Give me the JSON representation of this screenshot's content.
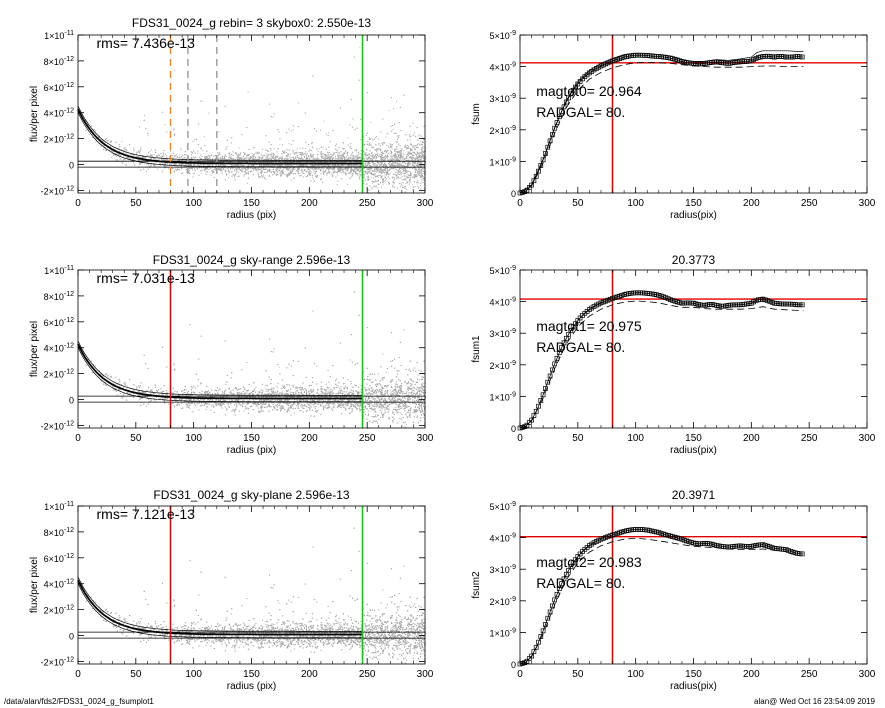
{
  "colors": {
    "scatter": "#a8a8a8",
    "profile": "#000000",
    "orange_marker": "#ff8000",
    "gray_marker": "#999999",
    "red_marker": "#e00000",
    "green_marker": "#00d000",
    "red_hline": "#e00000"
  },
  "footer": {
    "left": "/data/alan/fds2/FDS31_0024_g_fsumplot1",
    "right": "alan@  Wed Oct 16 23:54:09 2019"
  },
  "chart_data": [
    {
      "type": "scatter",
      "title": "FDS31_0024_g rebin= 3    skybox0:  2.550e-13",
      "annotation": "rms= 7.436e-13",
      "xlabel": "radius (pix)",
      "ylabel": "flux/per pixel",
      "xlim": [
        0,
        300
      ],
      "ylim": [
        -2.2e-12,
        1e-11
      ],
      "xticks": [
        "0",
        "50",
        "100",
        "150",
        "200",
        "250",
        "300"
      ],
      "yticks": [
        {
          "value": -2e-12,
          "mant": "-2×10",
          "exp": "-12"
        },
        {
          "value": 0,
          "mant": "0",
          "exp": ""
        },
        {
          "value": 2e-12,
          "mant": "2×10",
          "exp": "-12"
        },
        {
          "value": 4e-12,
          "mant": "4×10",
          "exp": "-12"
        },
        {
          "value": 6e-12,
          "mant": "6×10",
          "exp": "-12"
        },
        {
          "value": 8e-12,
          "mant": "8×10",
          "exp": "-12"
        },
        {
          "value": 1e-11,
          "mant": "1×10",
          "exp": "-11"
        }
      ],
      "sky_levels": [
        2.55e-13,
        -2e-13
      ],
      "vlines": [
        {
          "x": 80,
          "color": "orange_marker",
          "style": "dashed"
        },
        {
          "x": 95,
          "color": "gray_marker",
          "style": "dashed"
        },
        {
          "x": 120,
          "color": "gray_marker",
          "style": "dashed"
        },
        {
          "x": 246,
          "color": "green_marker",
          "style": "solid"
        }
      ]
    },
    {
      "type": "line",
      "title": "",
      "xlabel": "radius(pix)",
      "ylabel": "fsum",
      "xlim": [
        0,
        300
      ],
      "ylim": [
        0,
        5e-09
      ],
      "xticks": [
        "0",
        "50",
        "100",
        "150",
        "200",
        "250",
        "300"
      ],
      "yticks": [
        {
          "value": 0,
          "mant": "0",
          "exp": ""
        },
        {
          "value": 1e-09,
          "mant": "1×10",
          "exp": "-9"
        },
        {
          "value": 2e-09,
          "mant": "2×10",
          "exp": "-9"
        },
        {
          "value": 3e-09,
          "mant": "3×10",
          "exp": "-9"
        },
        {
          "value": 4e-09,
          "mant": "4×10",
          "exp": "-9"
        },
        {
          "value": 5e-09,
          "mant": "5×10",
          "exp": "-9"
        }
      ],
      "hline": 4.12e-09,
      "vline": 80,
      "text_lines": [
        "magtot0=  20.964",
        "RADGAL=     80."
      ],
      "series": [
        {
          "role": "main",
          "x": [
            0,
            5,
            10,
            15,
            20,
            25,
            30,
            35,
            40,
            45,
            50,
            55,
            60,
            65,
            70,
            75,
            80,
            85,
            90,
            95,
            100,
            105,
            110,
            115,
            120,
            125,
            130,
            135,
            140,
            145,
            150,
            155,
            160,
            165,
            170,
            175,
            180,
            185,
            190,
            195,
            200,
            205,
            210,
            215,
            220,
            225,
            230,
            235,
            240,
            245
          ],
          "y": [
            0,
            5e-11,
            2.5e-10,
            6e-10,
            1.05e-09,
            1.55e-09,
            2.05e-09,
            2.5e-09,
            2.88e-09,
            3.2e-09,
            3.45e-09,
            3.65e-09,
            3.8e-09,
            3.92e-09,
            4.02e-09,
            4.1e-09,
            4.18e-09,
            4.24e-09,
            4.3e-09,
            4.34e-09,
            4.36e-09,
            4.36e-09,
            4.35e-09,
            4.33e-09,
            4.32e-09,
            4.3e-09,
            4.27e-09,
            4.22e-09,
            4.16e-09,
            4.12e-09,
            4.1e-09,
            4.08e-09,
            4.1e-09,
            4.13e-09,
            4.15e-09,
            4.12e-09,
            4.1e-09,
            4.13e-09,
            4.15e-09,
            4.16e-09,
            4.18e-09,
            4.28e-09,
            4.32e-09,
            4.33e-09,
            4.3e-09,
            4.33e-09,
            4.3e-09,
            4.3e-09,
            4.32e-09,
            4.3e-09
          ]
        },
        {
          "role": "upper",
          "x": [
            0,
            10,
            20,
            30,
            40,
            50,
            60,
            70,
            80,
            90,
            100,
            110,
            120,
            130,
            140,
            150,
            160,
            170,
            180,
            190,
            200,
            205,
            210,
            220,
            230,
            240,
            245
          ],
          "y": [
            0,
            2.6e-10,
            1.07e-09,
            2.08e-09,
            2.93e-09,
            3.52e-09,
            3.88e-09,
            4.1e-09,
            4.26e-09,
            4.38e-09,
            4.42e-09,
            4.42e-09,
            4.38e-09,
            4.33e-09,
            4.22e-09,
            4.16e-09,
            4.17e-09,
            4.22e-09,
            4.2e-09,
            4.24e-09,
            4.3e-09,
            4.45e-09,
            4.5e-09,
            4.5e-09,
            4.5e-09,
            4.48e-09,
            4.48e-09
          ]
        },
        {
          "role": "lower",
          "x": [
            0,
            10,
            20,
            30,
            40,
            50,
            60,
            70,
            80,
            90,
            100,
            110,
            120,
            130,
            140,
            150,
            160,
            170,
            180,
            190,
            200,
            210,
            220,
            230,
            240,
            245
          ],
          "y": [
            0,
            2.2e-10,
            9.5e-10,
            1.9e-09,
            2.7e-09,
            3.25e-09,
            3.6e-09,
            3.82e-09,
            3.96e-09,
            4.06e-09,
            4.12e-09,
            4.13e-09,
            4.12e-09,
            4.1e-09,
            4.06e-09,
            4.02e-09,
            4e-09,
            3.98e-09,
            3.98e-09,
            3.98e-09,
            4e-09,
            4.02e-09,
            4.02e-09,
            4e-09,
            4e-09,
            4e-09
          ]
        }
      ]
    },
    {
      "type": "scatter",
      "title": "FDS31_0024_g sky-range  2.596e-13",
      "annotation": "rms= 7.031e-13",
      "xlabel": "radius (pix)",
      "ylabel": "flux/per pixel",
      "xlim": [
        0,
        300
      ],
      "ylim": [
        -2.2e-12,
        1e-11
      ],
      "xticks": [
        "0",
        "50",
        "100",
        "150",
        "200",
        "250",
        "300"
      ],
      "yticks": [
        {
          "value": -2e-12,
          "mant": "-2×10",
          "exp": "-12"
        },
        {
          "value": 0,
          "mant": "0",
          "exp": ""
        },
        {
          "value": 2e-12,
          "mant": "2×10",
          "exp": "-12"
        },
        {
          "value": 4e-12,
          "mant": "4×10",
          "exp": "-12"
        },
        {
          "value": 6e-12,
          "mant": "6×10",
          "exp": "-12"
        },
        {
          "value": 8e-12,
          "mant": "8×10",
          "exp": "-12"
        },
        {
          "value": 1e-11,
          "mant": "1×10",
          "exp": "-11"
        }
      ],
      "sky_levels": [
        2.6e-13,
        -2e-13
      ],
      "vlines": [
        {
          "x": 80,
          "color": "red_marker",
          "style": "solid"
        },
        {
          "x": 246,
          "color": "green_marker",
          "style": "solid"
        }
      ]
    },
    {
      "type": "line",
      "title": "20.3773",
      "xlabel": "radius(pix)",
      "ylabel": "fsum1",
      "xlim": [
        0,
        300
      ],
      "ylim": [
        0,
        5e-09
      ],
      "xticks": [
        "0",
        "50",
        "100",
        "150",
        "200",
        "250",
        "300"
      ],
      "yticks": [
        {
          "value": 0,
          "mant": "0",
          "exp": ""
        },
        {
          "value": 1e-09,
          "mant": "1×10",
          "exp": "-9"
        },
        {
          "value": 2e-09,
          "mant": "2×10",
          "exp": "-9"
        },
        {
          "value": 3e-09,
          "mant": "3×10",
          "exp": "-9"
        },
        {
          "value": 4e-09,
          "mant": "4×10",
          "exp": "-9"
        },
        {
          "value": 5e-09,
          "mant": "5×10",
          "exp": "-9"
        }
      ],
      "hline": 4.08e-09,
      "vline": 80,
      "text_lines": [
        "magtot1=  20.975",
        "RADGAL=     80."
      ],
      "series": [
        {
          "role": "main",
          "x": [
            0,
            5,
            10,
            15,
            20,
            25,
            30,
            35,
            40,
            45,
            50,
            55,
            60,
            65,
            70,
            75,
            80,
            85,
            90,
            95,
            100,
            105,
            110,
            115,
            120,
            125,
            130,
            135,
            140,
            145,
            150,
            155,
            160,
            165,
            170,
            175,
            180,
            185,
            190,
            195,
            200,
            205,
            210,
            215,
            220,
            225,
            230,
            235,
            240,
            245
          ],
          "y": [
            0,
            5e-11,
            2.5e-10,
            6e-10,
            1.05e-09,
            1.55e-09,
            2.03e-09,
            2.47e-09,
            2.84e-09,
            3.15e-09,
            3.4e-09,
            3.6e-09,
            3.75e-09,
            3.87e-09,
            3.96e-09,
            4.03e-09,
            4.1e-09,
            4.16e-09,
            4.22e-09,
            4.26e-09,
            4.28e-09,
            4.28e-09,
            4.26e-09,
            4.24e-09,
            4.2e-09,
            4.14e-09,
            4.06e-09,
            4e-09,
            3.95e-09,
            3.96e-09,
            3.95e-09,
            3.9e-09,
            3.88e-09,
            3.92e-09,
            3.88e-09,
            3.85e-09,
            3.88e-09,
            3.9e-09,
            3.9e-09,
            3.92e-09,
            3.95e-09,
            4.05e-09,
            4.08e-09,
            4.02e-09,
            3.95e-09,
            3.93e-09,
            3.92e-09,
            3.92e-09,
            3.9e-09,
            3.9e-09
          ]
        },
        {
          "role": "lower",
          "x": [
            0,
            10,
            20,
            30,
            40,
            50,
            60,
            70,
            80,
            90,
            100,
            110,
            120,
            130,
            140,
            150,
            160,
            170,
            180,
            190,
            200,
            210,
            220,
            230,
            240,
            245
          ],
          "y": [
            0,
            2.2e-10,
            9.5e-10,
            1.88e-09,
            2.66e-09,
            3.2e-09,
            3.54e-09,
            3.76e-09,
            3.9e-09,
            3.98e-09,
            4.02e-09,
            4e-09,
            3.96e-09,
            3.88e-09,
            3.82e-09,
            3.82e-09,
            3.78e-09,
            3.76e-09,
            3.76e-09,
            3.76e-09,
            3.78e-09,
            3.84e-09,
            3.76e-09,
            3.74e-09,
            3.72e-09,
            3.72e-09
          ]
        }
      ]
    },
    {
      "type": "scatter",
      "title": "FDS31_0024_g sky-plane  2.596e-13",
      "annotation": "rms= 7.121e-13",
      "xlabel": "radius (pix)",
      "ylabel": "flux/per pixel",
      "xlim": [
        0,
        300
      ],
      "ylim": [
        -2.2e-12,
        1e-11
      ],
      "xticks": [
        "0",
        "50",
        "100",
        "150",
        "200",
        "250",
        "300"
      ],
      "yticks": [
        {
          "value": -2e-12,
          "mant": "-2×10",
          "exp": "-12"
        },
        {
          "value": 0,
          "mant": "0",
          "exp": ""
        },
        {
          "value": 2e-12,
          "mant": "2×10",
          "exp": "-12"
        },
        {
          "value": 4e-12,
          "mant": "4×10",
          "exp": "-12"
        },
        {
          "value": 6e-12,
          "mant": "6×10",
          "exp": "-12"
        },
        {
          "value": 8e-12,
          "mant": "8×10",
          "exp": "-12"
        },
        {
          "value": 1e-11,
          "mant": "1×10",
          "exp": "-11"
        }
      ],
      "sky_levels": [
        2.6e-13,
        -2e-13
      ],
      "vlines": [
        {
          "x": 80,
          "color": "red_marker",
          "style": "solid"
        },
        {
          "x": 246,
          "color": "green_marker",
          "style": "solid"
        }
      ]
    },
    {
      "type": "line",
      "title": "20.3971",
      "xlabel": "radius(pix)",
      "ylabel": "fsum2",
      "xlim": [
        0,
        300
      ],
      "ylim": [
        0,
        5e-09
      ],
      "xticks": [
        "0",
        "50",
        "100",
        "150",
        "200",
        "250",
        "300"
      ],
      "yticks": [
        {
          "value": 0,
          "mant": "0",
          "exp": ""
        },
        {
          "value": 1e-09,
          "mant": "1×10",
          "exp": "-9"
        },
        {
          "value": 2e-09,
          "mant": "2×10",
          "exp": "-9"
        },
        {
          "value": 3e-09,
          "mant": "3×10",
          "exp": "-9"
        },
        {
          "value": 4e-09,
          "mant": "4×10",
          "exp": "-9"
        },
        {
          "value": 5e-09,
          "mant": "5×10",
          "exp": "-9"
        }
      ],
      "hline": 4.03e-09,
      "vline": 80,
      "text_lines": [
        "magtot2=  20.983",
        "RADGAL=     80."
      ],
      "series": [
        {
          "role": "main",
          "x": [
            0,
            5,
            10,
            15,
            20,
            25,
            30,
            35,
            40,
            45,
            50,
            55,
            60,
            65,
            70,
            75,
            80,
            85,
            90,
            95,
            100,
            105,
            110,
            115,
            120,
            125,
            130,
            135,
            140,
            145,
            150,
            155,
            160,
            165,
            170,
            175,
            180,
            185,
            190,
            195,
            200,
            205,
            210,
            215,
            220,
            225,
            230,
            235,
            240,
            245
          ],
          "y": [
            0,
            5e-11,
            2.5e-10,
            6e-10,
            1.05e-09,
            1.55e-09,
            2.03e-09,
            2.47e-09,
            2.84e-09,
            3.15e-09,
            3.4e-09,
            3.6e-09,
            3.75e-09,
            3.86e-09,
            3.95e-09,
            4.02e-09,
            4.08e-09,
            4.14e-09,
            4.2e-09,
            4.24e-09,
            4.26e-09,
            4.26e-09,
            4.24e-09,
            4.2e-09,
            4.16e-09,
            4.1e-09,
            4.05e-09,
            4e-09,
            3.95e-09,
            3.88e-09,
            3.83e-09,
            3.8e-09,
            3.82e-09,
            3.8e-09,
            3.75e-09,
            3.72e-09,
            3.7e-09,
            3.72e-09,
            3.74e-09,
            3.72e-09,
            3.72e-09,
            3.76e-09,
            3.78e-09,
            3.72e-09,
            3.66e-09,
            3.64e-09,
            3.62e-09,
            3.55e-09,
            3.5e-09,
            3.48e-09
          ]
        },
        {
          "role": "lower",
          "x": [
            0,
            10,
            20,
            30,
            40,
            50,
            60,
            70,
            80,
            90,
            100,
            110,
            120,
            130,
            140,
            150,
            160,
            170,
            180,
            190,
            200,
            210,
            220
          ],
          "y": [
            0,
            2.2e-10,
            9.5e-10,
            1.88e-09,
            2.66e-09,
            3.2e-09,
            3.54e-09,
            3.74e-09,
            3.87e-09,
            3.95e-09,
            3.98e-09,
            3.95e-09,
            3.9e-09,
            3.84e-09,
            3.78e-09,
            3.72e-09,
            3.7e-09,
            3.68e-09,
            3.64e-09,
            3.62e-09,
            3.62e-09,
            3.64e-09,
            3.6e-09
          ]
        }
      ]
    }
  ]
}
